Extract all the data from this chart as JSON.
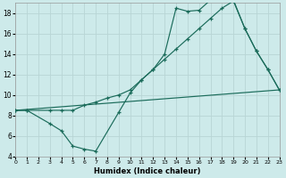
{
  "xlabel": "Humidex (Indice chaleur)",
  "bg_color": "#cdeaea",
  "grid_color": "#b8d5d5",
  "line_color": "#1a6b5a",
  "xlim": [
    0,
    23
  ],
  "ylim": [
    4,
    19
  ],
  "xticks": [
    0,
    1,
    2,
    3,
    4,
    5,
    6,
    7,
    8,
    9,
    10,
    11,
    12,
    13,
    14,
    15,
    16,
    17,
    18,
    19,
    20,
    21,
    22,
    23
  ],
  "yticks": [
    4,
    6,
    8,
    10,
    12,
    14,
    16,
    18
  ],
  "line1_x": [
    0,
    23
  ],
  "line1_y": [
    8.5,
    10.5
  ],
  "line2_x": [
    0,
    1,
    3,
    4,
    5,
    6,
    7,
    8,
    9,
    10,
    11,
    12,
    13,
    14,
    15,
    16,
    17,
    18,
    19,
    20,
    21,
    22,
    23
  ],
  "line2_y": [
    8.5,
    8.5,
    8.5,
    8.5,
    8.5,
    9.0,
    9.3,
    9.7,
    10.0,
    10.5,
    11.5,
    12.5,
    13.5,
    14.5,
    15.5,
    16.5,
    17.5,
    18.5,
    19.2,
    16.5,
    14.3,
    12.5,
    10.5
  ],
  "line3_x": [
    0,
    1,
    3,
    4,
    5,
    6,
    7,
    9,
    10,
    11,
    12,
    13,
    14,
    15,
    16,
    17,
    18,
    19,
    20,
    21,
    22,
    23
  ],
  "line3_y": [
    8.5,
    8.5,
    7.2,
    6.5,
    5.0,
    4.7,
    4.5,
    8.3,
    10.2,
    11.5,
    12.5,
    14.0,
    18.5,
    18.2,
    18.3,
    19.3,
    19.3,
    19.3,
    16.5,
    14.3,
    12.5,
    10.5
  ]
}
